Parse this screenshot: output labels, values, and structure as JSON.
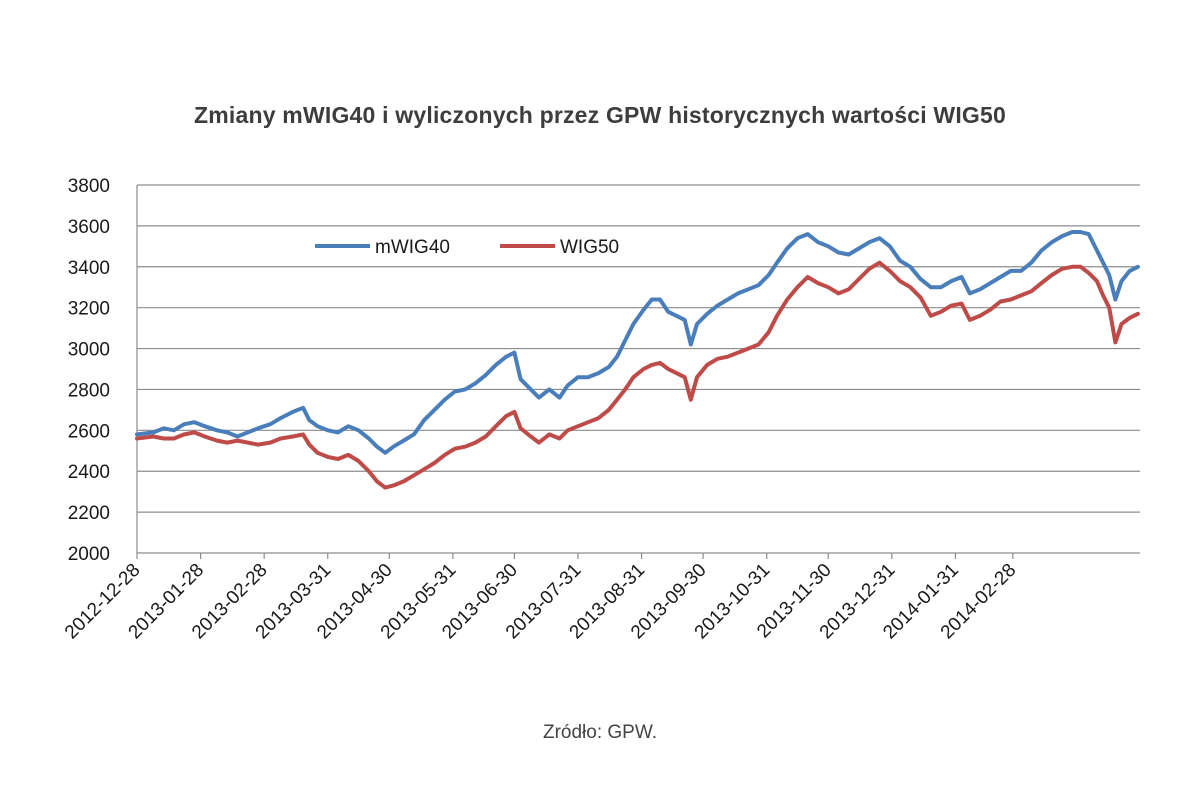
{
  "chart_data": {
    "type": "line",
    "title": "Zmiany mWIG40 i wyliczonych przez GPW historycznych wartości WIG50",
    "xlabel": "",
    "ylabel": "",
    "ylim": [
      2000,
      3800
    ],
    "yticks": [
      2000,
      2200,
      2400,
      2600,
      2800,
      3000,
      3200,
      3400,
      3600,
      3800
    ],
    "xtick_labels": [
      "2012-12-28",
      "2013-01-28",
      "2013-02-28",
      "2013-03-31",
      "2013-04-30",
      "2013-05-31",
      "2013-06-30",
      "2013-07-31",
      "2013-08-31",
      "2013-09-30",
      "2013-10-31",
      "2013-11-30",
      "2013-12-31",
      "2014-01-31",
      "2014-02-28"
    ],
    "grid": true,
    "legend_position": "top-left",
    "source_note": "Zródło: GPW.",
    "series": [
      {
        "name": "mWIG40",
        "color": "#4a7ebb",
        "points": [
          [
            "2012-12-28",
            2580
          ],
          [
            "2013-01-05",
            2590
          ],
          [
            "2013-01-10",
            2610
          ],
          [
            "2013-01-15",
            2600
          ],
          [
            "2013-01-20",
            2630
          ],
          [
            "2013-01-25",
            2640
          ],
          [
            "2013-01-30",
            2620
          ],
          [
            "2013-02-05",
            2600
          ],
          [
            "2013-02-10",
            2590
          ],
          [
            "2013-02-15",
            2570
          ],
          [
            "2013-02-20",
            2590
          ],
          [
            "2013-02-25",
            2610
          ],
          [
            "2013-03-03",
            2630
          ],
          [
            "2013-03-08",
            2660
          ],
          [
            "2013-03-14",
            2690
          ],
          [
            "2013-03-19",
            2710
          ],
          [
            "2013-03-22",
            2650
          ],
          [
            "2013-03-26",
            2620
          ],
          [
            "2013-03-31",
            2600
          ],
          [
            "2013-04-05",
            2590
          ],
          [
            "2013-04-10",
            2620
          ],
          [
            "2013-04-15",
            2600
          ],
          [
            "2013-04-20",
            2560
          ],
          [
            "2013-04-24",
            2520
          ],
          [
            "2013-04-28",
            2490
          ],
          [
            "2013-05-02",
            2520
          ],
          [
            "2013-05-07",
            2550
          ],
          [
            "2013-05-12",
            2580
          ],
          [
            "2013-05-17",
            2650
          ],
          [
            "2013-05-22",
            2700
          ],
          [
            "2013-05-27",
            2750
          ],
          [
            "2013-06-01",
            2790
          ],
          [
            "2013-06-06",
            2800
          ],
          [
            "2013-06-11",
            2830
          ],
          [
            "2013-06-16",
            2870
          ],
          [
            "2013-06-21",
            2920
          ],
          [
            "2013-06-26",
            2960
          ],
          [
            "2013-06-30",
            2980
          ],
          [
            "2013-07-03",
            2850
          ],
          [
            "2013-07-08",
            2800
          ],
          [
            "2013-07-12",
            2760
          ],
          [
            "2013-07-17",
            2800
          ],
          [
            "2013-07-22",
            2760
          ],
          [
            "2013-07-26",
            2820
          ],
          [
            "2013-07-31",
            2860
          ],
          [
            "2013-08-05",
            2860
          ],
          [
            "2013-08-10",
            2880
          ],
          [
            "2013-08-15",
            2910
          ],
          [
            "2013-08-19",
            2960
          ],
          [
            "2013-08-23",
            3040
          ],
          [
            "2013-08-27",
            3120
          ],
          [
            "2013-09-01",
            3190
          ],
          [
            "2013-09-05",
            3240
          ],
          [
            "2013-09-09",
            3240
          ],
          [
            "2013-09-13",
            3180
          ],
          [
            "2013-09-17",
            3160
          ],
          [
            "2013-09-21",
            3140
          ],
          [
            "2013-09-24",
            3020
          ],
          [
            "2013-09-27",
            3120
          ],
          [
            "2013-10-02",
            3170
          ],
          [
            "2013-10-07",
            3210
          ],
          [
            "2013-10-12",
            3240
          ],
          [
            "2013-10-17",
            3270
          ],
          [
            "2013-10-22",
            3290
          ],
          [
            "2013-10-27",
            3310
          ],
          [
            "2013-11-01",
            3360
          ],
          [
            "2013-11-05",
            3420
          ],
          [
            "2013-11-10",
            3490
          ],
          [
            "2013-11-15",
            3540
          ],
          [
            "2013-11-20",
            3560
          ],
          [
            "2013-11-25",
            3520
          ],
          [
            "2013-11-30",
            3500
          ],
          [
            "2013-12-05",
            3470
          ],
          [
            "2013-12-10",
            3460
          ],
          [
            "2013-12-15",
            3490
          ],
          [
            "2013-12-20",
            3520
          ],
          [
            "2013-12-25",
            3540
          ],
          [
            "2013-12-30",
            3500
          ],
          [
            "2014-01-04",
            3430
          ],
          [
            "2014-01-09",
            3400
          ],
          [
            "2014-01-14",
            3340
          ],
          [
            "2014-01-19",
            3300
          ],
          [
            "2014-01-24",
            3300
          ],
          [
            "2014-01-29",
            3330
          ],
          [
            "2014-02-03",
            3350
          ],
          [
            "2014-02-07",
            3270
          ],
          [
            "2014-02-12",
            3290
          ],
          [
            "2014-02-17",
            3320
          ],
          [
            "2014-02-22",
            3350
          ],
          [
            "2014-02-27",
            3380
          ],
          [
            "2014-03-04",
            3380
          ],
          [
            "2014-03-09",
            3420
          ],
          [
            "2014-03-14",
            3480
          ],
          [
            "2014-03-19",
            3520
          ],
          [
            "2014-03-24",
            3550
          ],
          [
            "2014-03-29",
            3570
          ],
          [
            "2014-04-02",
            3570
          ],
          [
            "2014-04-06",
            3560
          ],
          [
            "2014-04-10",
            3480
          ],
          [
            "2014-04-13",
            3420
          ],
          [
            "2014-04-16",
            3360
          ],
          [
            "2014-04-19",
            3240
          ],
          [
            "2014-04-22",
            3330
          ],
          [
            "2014-04-26",
            3380
          ],
          [
            "2014-04-30",
            3400
          ]
        ]
      },
      {
        "name": "WIG50",
        "color": "#be4b48",
        "points": [
          [
            "2012-12-28",
            2560
          ],
          [
            "2013-01-05",
            2570
          ],
          [
            "2013-01-10",
            2560
          ],
          [
            "2013-01-15",
            2560
          ],
          [
            "2013-01-20",
            2580
          ],
          [
            "2013-01-25",
            2590
          ],
          [
            "2013-01-30",
            2570
          ],
          [
            "2013-02-05",
            2550
          ],
          [
            "2013-02-10",
            2540
          ],
          [
            "2013-02-15",
            2550
          ],
          [
            "2013-02-20",
            2540
          ],
          [
            "2013-02-25",
            2530
          ],
          [
            "2013-03-03",
            2540
          ],
          [
            "2013-03-08",
            2560
          ],
          [
            "2013-03-14",
            2570
          ],
          [
            "2013-03-19",
            2580
          ],
          [
            "2013-03-22",
            2530
          ],
          [
            "2013-03-26",
            2490
          ],
          [
            "2013-03-31",
            2470
          ],
          [
            "2013-04-05",
            2460
          ],
          [
            "2013-04-10",
            2480
          ],
          [
            "2013-04-15",
            2450
          ],
          [
            "2013-04-20",
            2400
          ],
          [
            "2013-04-24",
            2350
          ],
          [
            "2013-04-28",
            2320
          ],
          [
            "2013-05-02",
            2330
          ],
          [
            "2013-05-07",
            2350
          ],
          [
            "2013-05-12",
            2380
          ],
          [
            "2013-05-17",
            2410
          ],
          [
            "2013-05-22",
            2440
          ],
          [
            "2013-05-27",
            2480
          ],
          [
            "2013-06-01",
            2510
          ],
          [
            "2013-06-06",
            2520
          ],
          [
            "2013-06-11",
            2540
          ],
          [
            "2013-06-16",
            2570
          ],
          [
            "2013-06-21",
            2620
          ],
          [
            "2013-06-26",
            2670
          ],
          [
            "2013-06-30",
            2690
          ],
          [
            "2013-07-03",
            2610
          ],
          [
            "2013-07-08",
            2570
          ],
          [
            "2013-07-12",
            2540
          ],
          [
            "2013-07-17",
            2580
          ],
          [
            "2013-07-22",
            2560
          ],
          [
            "2013-07-26",
            2600
          ],
          [
            "2013-07-31",
            2620
          ],
          [
            "2013-08-05",
            2640
          ],
          [
            "2013-08-10",
            2660
          ],
          [
            "2013-08-15",
            2700
          ],
          [
            "2013-08-19",
            2750
          ],
          [
            "2013-08-23",
            2800
          ],
          [
            "2013-08-27",
            2860
          ],
          [
            "2013-09-01",
            2900
          ],
          [
            "2013-09-05",
            2920
          ],
          [
            "2013-09-09",
            2930
          ],
          [
            "2013-09-13",
            2900
          ],
          [
            "2013-09-17",
            2880
          ],
          [
            "2013-09-21",
            2860
          ],
          [
            "2013-09-24",
            2750
          ],
          [
            "2013-09-27",
            2860
          ],
          [
            "2013-10-02",
            2920
          ],
          [
            "2013-10-07",
            2950
          ],
          [
            "2013-10-12",
            2960
          ],
          [
            "2013-10-17",
            2980
          ],
          [
            "2013-10-22",
            3000
          ],
          [
            "2013-10-27",
            3020
          ],
          [
            "2013-11-01",
            3080
          ],
          [
            "2013-11-05",
            3160
          ],
          [
            "2013-11-10",
            3240
          ],
          [
            "2013-11-15",
            3300
          ],
          [
            "2013-11-20",
            3350
          ],
          [
            "2013-11-25",
            3320
          ],
          [
            "2013-11-30",
            3300
          ],
          [
            "2013-12-05",
            3270
          ],
          [
            "2013-12-10",
            3290
          ],
          [
            "2013-12-15",
            3340
          ],
          [
            "2013-12-20",
            3390
          ],
          [
            "2013-12-25",
            3420
          ],
          [
            "2013-12-30",
            3380
          ],
          [
            "2014-01-04",
            3330
          ],
          [
            "2014-01-09",
            3300
          ],
          [
            "2014-01-14",
            3250
          ],
          [
            "2014-01-19",
            3160
          ],
          [
            "2014-01-24",
            3180
          ],
          [
            "2014-01-29",
            3210
          ],
          [
            "2014-02-03",
            3220
          ],
          [
            "2014-02-07",
            3140
          ],
          [
            "2014-02-12",
            3160
          ],
          [
            "2014-02-17",
            3190
          ],
          [
            "2014-02-22",
            3230
          ],
          [
            "2014-02-27",
            3240
          ],
          [
            "2014-03-04",
            3260
          ],
          [
            "2014-03-09",
            3280
          ],
          [
            "2014-03-14",
            3320
          ],
          [
            "2014-03-19",
            3360
          ],
          [
            "2014-03-24",
            3390
          ],
          [
            "2014-03-29",
            3400
          ],
          [
            "2014-04-02",
            3400
          ],
          [
            "2014-04-06",
            3370
          ],
          [
            "2014-04-10",
            3330
          ],
          [
            "2014-04-13",
            3260
          ],
          [
            "2014-04-16",
            3200
          ],
          [
            "2014-04-19",
            3030
          ],
          [
            "2014-04-22",
            3120
          ],
          [
            "2014-04-26",
            3150
          ],
          [
            "2014-04-30",
            3170
          ]
        ]
      }
    ]
  }
}
